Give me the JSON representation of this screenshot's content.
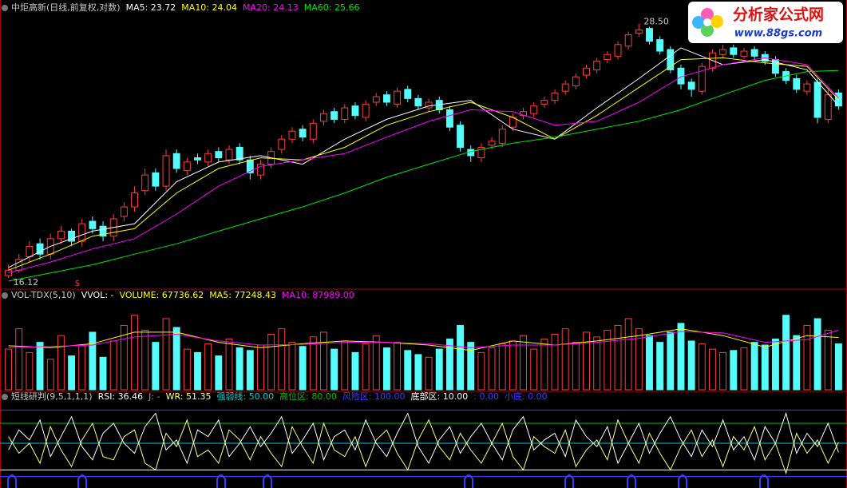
{
  "chart_data": [
    {
      "type": "candlestick",
      "title": "中炬高新(日线,前复权,对数)",
      "title_color": "#c8c8c8",
      "log": true,
      "ylim": [
        15.83,
        29.0
      ],
      "up_color": "#ff3c3c",
      "down_color": "#54fcfc",
      "open": [
        16.2,
        16.4,
        16.9,
        17.4,
        17.0,
        17.6,
        17.9,
        17.5,
        18.3,
        18.1,
        17.7,
        18.5,
        18.9,
        19.6,
        20.4,
        19.8,
        21.3,
        20.5,
        21.1,
        20.9,
        21.4,
        21.0,
        21.6,
        21.0,
        20.3,
        20.8,
        21.5,
        22.0,
        22.5,
        22.0,
        22.9,
        23.4,
        23.0,
        23.7,
        23.1,
        23.9,
        24.3,
        23.8,
        24.6,
        24.1,
        23.6,
        24.0,
        23.5,
        22.7,
        21.5,
        21.1,
        21.7,
        21.8,
        22.6,
        23.2,
        23.3,
        23.8,
        24.0,
        24.5,
        24.8,
        25.4,
        25.7,
        26.3,
        26.5,
        27.1,
        27.9,
        28.2,
        27.5,
        26.9,
        25.8,
        25.0,
        24.5,
        25.8,
        26.6,
        27.0,
        26.5,
        26.9,
        26.6,
        26.3,
        25.6,
        25.2,
        24.5,
        25.0,
        23.0,
        24.4
      ],
      "close": [
        16.4,
        16.8,
        17.3,
        17.0,
        17.6,
        17.9,
        17.5,
        18.2,
        18.0,
        17.7,
        18.4,
        18.9,
        19.5,
        20.3,
        19.8,
        21.2,
        20.6,
        20.9,
        21.0,
        21.3,
        21.1,
        21.5,
        21.0,
        20.4,
        20.8,
        21.4,
        22.0,
        22.4,
        22.1,
        22.8,
        23.3,
        23.0,
        23.6,
        23.2,
        23.8,
        24.2,
        23.9,
        24.5,
        24.1,
        23.7,
        23.9,
        23.5,
        22.6,
        21.6,
        21.2,
        21.6,
        21.9,
        22.5,
        23.1,
        23.4,
        23.7,
        24.0,
        24.4,
        24.9,
        25.3,
        25.8,
        26.2,
        26.6,
        27.2,
        27.8,
        28.1,
        27.4,
        26.8,
        25.7,
        24.9,
        24.6,
        25.9,
        26.7,
        26.9,
        26.6,
        26.8,
        26.5,
        26.2,
        25.5,
        25.1,
        24.6,
        24.9,
        23.1,
        24.3,
        23.7
      ],
      "high": [
        16.6,
        17.0,
        17.5,
        17.6,
        17.8,
        18.1,
        18.0,
        18.4,
        18.5,
        18.3,
        18.6,
        19.1,
        19.8,
        20.6,
        20.6,
        21.5,
        21.5,
        21.1,
        21.3,
        21.5,
        21.6,
        21.7,
        21.8,
        21.2,
        21.0,
        21.6,
        22.2,
        22.6,
        22.7,
        23.0,
        23.5,
        23.6,
        23.8,
        23.9,
        24.0,
        24.4,
        24.5,
        24.7,
        24.8,
        24.3,
        24.1,
        24.2,
        23.7,
        22.9,
        21.7,
        21.8,
        22.1,
        22.7,
        23.3,
        23.6,
        23.9,
        24.2,
        24.6,
        25.1,
        25.5,
        26.0,
        26.4,
        26.8,
        27.4,
        28.0,
        28.5,
        28.3,
        27.7,
        27.1,
        26.0,
        25.2,
        26.1,
        26.9,
        27.2,
        27.2,
        27.0,
        27.1,
        26.8,
        26.5,
        25.8,
        25.4,
        25.1,
        25.2,
        24.6,
        24.6
      ],
      "low": [
        16.12,
        16.3,
        16.7,
        16.8,
        16.8,
        17.4,
        17.3,
        17.3,
        17.8,
        17.5,
        17.5,
        18.3,
        18.7,
        19.4,
        19.6,
        19.6,
        20.4,
        20.3,
        20.8,
        20.7,
        20.9,
        20.8,
        20.8,
        20.1,
        20.1,
        20.6,
        21.3,
        21.8,
        21.9,
        21.8,
        22.7,
        22.8,
        22.8,
        23.0,
        22.9,
        23.7,
        23.7,
        23.6,
        23.9,
        23.5,
        23.4,
        23.3,
        22.4,
        21.4,
        20.9,
        20.9,
        21.5,
        21.6,
        22.4,
        23.0,
        23.1,
        23.6,
        23.8,
        24.3,
        24.6,
        25.2,
        25.5,
        26.1,
        26.3,
        26.9,
        27.7,
        27.2,
        26.6,
        25.5,
        24.6,
        24.2,
        24.3,
        25.6,
        26.4,
        26.4,
        26.3,
        26.3,
        26.0,
        25.3,
        24.9,
        24.4,
        24.3,
        22.8,
        22.8,
        23.5
      ],
      "series": [
        {
          "name": "MA5: 23.72",
          "color": "#ffffff",
          "x": [
            0,
            4,
            8,
            12,
            16,
            20,
            24,
            28,
            32,
            36,
            40,
            44,
            48,
            52,
            56,
            60,
            64,
            68,
            72,
            76,
            79
          ],
          "values": [
            16.5,
            17.3,
            17.9,
            18.2,
            20.0,
            20.9,
            21.2,
            20.8,
            22.0,
            23.0,
            23.7,
            24.0,
            22.5,
            22.0,
            23.6,
            25.2,
            27.0,
            26.0,
            26.3,
            25.7,
            23.72
          ]
        },
        {
          "name": "MA10: 24.04",
          "color": "#ffff00",
          "x": [
            0,
            4,
            8,
            12,
            16,
            20,
            24,
            28,
            32,
            36,
            40,
            44,
            48,
            52,
            56,
            60,
            64,
            68,
            72,
            76,
            79
          ],
          "values": [
            16.4,
            17.0,
            17.7,
            18.0,
            19.5,
            20.6,
            21.1,
            21.0,
            21.6,
            22.7,
            23.4,
            23.9,
            23.1,
            22.0,
            23.2,
            24.7,
            26.3,
            26.4,
            26.1,
            25.9,
            24.04
          ]
        },
        {
          "name": "MA20: 24.13",
          "color": "#ff00ff",
          "x": [
            0,
            4,
            8,
            12,
            16,
            20,
            24,
            28,
            32,
            36,
            40,
            44,
            48,
            52,
            56,
            60,
            64,
            68,
            72,
            76,
            79
          ],
          "values": [
            16.3,
            16.7,
            17.2,
            17.6,
            18.6,
            19.8,
            20.7,
            21.0,
            21.3,
            22.1,
            22.9,
            23.5,
            23.4,
            22.7,
            22.9,
            23.9,
            25.3,
            26.0,
            26.4,
            26.0,
            24.13
          ]
        },
        {
          "name": "MA60: 25.66",
          "color": "#00e600",
          "x": [
            0,
            4,
            8,
            12,
            16,
            20,
            24,
            28,
            32,
            36,
            40,
            44,
            48,
            52,
            56,
            60,
            64,
            68,
            72,
            76,
            79
          ],
          "values": [
            16.0,
            16.3,
            16.6,
            17.0,
            17.4,
            17.9,
            18.4,
            18.9,
            19.5,
            20.2,
            20.8,
            21.4,
            21.8,
            22.1,
            22.5,
            22.9,
            23.5,
            24.3,
            25.1,
            25.6,
            25.66
          ]
        }
      ],
      "annotations": [
        {
          "text": "28.50",
          "x": 60,
          "y": 28.5
        },
        {
          "text": "16.12",
          "x": 0,
          "y": 16.12
        }
      ],
      "signal_marker": "$"
    },
    {
      "type": "bar",
      "title": "VOL-TDX(5,10)",
      "title_color": "#c8c8c8",
      "ylim": [
        0,
        125000
      ],
      "notes": [
        {
          "text": "VVOL: -",
          "color": "#ffffff"
        },
        {
          "text": "VOLUME: 67736.62",
          "color": "#ffff00"
        }
      ],
      "values": [
        60000,
        90000,
        55000,
        70000,
        45000,
        80000,
        50000,
        65000,
        85000,
        48000,
        72000,
        95000,
        110000,
        88000,
        70000,
        105000,
        92000,
        60000,
        55000,
        68000,
        50000,
        75000,
        62000,
        58000,
        66000,
        82000,
        90000,
        70000,
        64000,
        78000,
        85000,
        60000,
        72000,
        55000,
        68000,
        80000,
        62000,
        70000,
        58000,
        52000,
        48000,
        60000,
        75000,
        95000,
        70000,
        55000,
        62000,
        68000,
        72000,
        80000,
        60000,
        75000,
        82000,
        90000,
        70000,
        85000,
        78000,
        88000,
        95000,
        105000,
        90000,
        80000,
        70000,
        85000,
        98000,
        72000,
        68000,
        60000,
        55000,
        58000,
        62000,
        70000,
        66000,
        75000,
        110000,
        80000,
        95000,
        105000,
        88000,
        67736.62
      ],
      "series": [
        {
          "name": "MA5: 77248.43",
          "color": "#ffff00",
          "x": [
            0,
            4,
            8,
            12,
            16,
            20,
            24,
            28,
            32,
            36,
            40,
            44,
            48,
            52,
            56,
            60,
            64,
            68,
            72,
            76,
            79
          ],
          "values": [
            65000,
            62000,
            68000,
            85000,
            85000,
            70000,
            62000,
            68000,
            72000,
            70000,
            66000,
            58000,
            72000,
            66000,
            72000,
            80000,
            90000,
            80000,
            63000,
            80000,
            77248.43
          ]
        },
        {
          "name": "MA10: 87989.00",
          "color": "#ff00ff",
          "x": [
            0,
            4,
            8,
            12,
            16,
            20,
            24,
            28,
            32,
            36,
            40,
            44,
            48,
            52,
            56,
            60,
            64,
            68,
            72,
            76,
            79
          ],
          "values": [
            62000,
            64000,
            66000,
            78000,
            82000,
            72000,
            66000,
            67000,
            70000,
            70000,
            68000,
            62000,
            66000,
            66000,
            70000,
            76000,
            86000,
            84000,
            70000,
            74000,
            87989
          ]
        }
      ]
    },
    {
      "type": "line",
      "title": "短线研判(9,5,1,1,1)",
      "title_color": "#c8c8c8",
      "ylim": [
        -10,
        110
      ],
      "series": [
        {
          "name": "RSI: 36.46",
          "color": "#ffffff",
          "values": [
            40,
            70,
            55,
            85,
            30,
            60,
            90,
            45,
            25,
            65,
            80,
            50,
            35,
            75,
            95,
            40,
            55,
            20,
            70,
            60,
            85,
            30,
            50,
            75,
            45,
            65,
            90,
            35,
            55,
            80,
            25,
            60,
            70,
            40,
            85,
            50,
            30,
            65,
            95,
            45,
            20,
            55,
            75,
            35,
            60,
            80,
            50,
            25,
            70,
            90,
            40,
            55,
            65,
            30,
            85,
            60,
            45,
            75,
            20,
            50,
            80,
            35,
            65,
            90,
            55,
            30,
            70,
            45,
            85,
            40,
            60,
            25,
            75,
            50,
            95,
            35,
            65,
            45,
            80,
            36.46
          ]
        },
        {
          "name": "WR: 51.35",
          "color": "#ffff80",
          "values": [
            60,
            35,
            50,
            20,
            75,
            40,
            15,
            55,
            80,
            30,
            25,
            60,
            70,
            20,
            10,
            65,
            45,
            85,
            30,
            40,
            20,
            70,
            55,
            25,
            60,
            35,
            15,
            75,
            45,
            20,
            80,
            40,
            30,
            60,
            15,
            55,
            70,
            35,
            10,
            55,
            85,
            45,
            25,
            65,
            40,
            20,
            50,
            80,
            30,
            10,
            60,
            45,
            35,
            70,
            15,
            40,
            55,
            25,
            85,
            50,
            20,
            65,
            35,
            10,
            45,
            70,
            30,
            55,
            15,
            60,
            40,
            75,
            25,
            50,
            5,
            65,
            35,
            55,
            20,
            51.35
          ]
        }
      ],
      "notes": [
        {
          "text": "J: -",
          "color": "#ff55ff"
        }
      ],
      "levels": [
        {
          "label": "强弱线: 50.00",
          "value": 50,
          "color": "#00d0d0"
        },
        {
          "label": "高位区: 80.00",
          "value": 80,
          "color": "#00c000"
        },
        {
          "label": "风险区: 100.00",
          "value": 100,
          "color": "#3c3cff"
        },
        {
          "label": "底部区: 10.00",
          "value": 10,
          "color": "#ffffff"
        },
        {
          "label": ": 0.00",
          "value": 0,
          "color": "#3c3cff"
        },
        {
          "label": "小底: 0.00",
          "value": 0,
          "color": "#3c3cff"
        }
      ]
    }
  ],
  "logo": {
    "title": "分析家公式网",
    "url": "www.88gs.com"
  }
}
